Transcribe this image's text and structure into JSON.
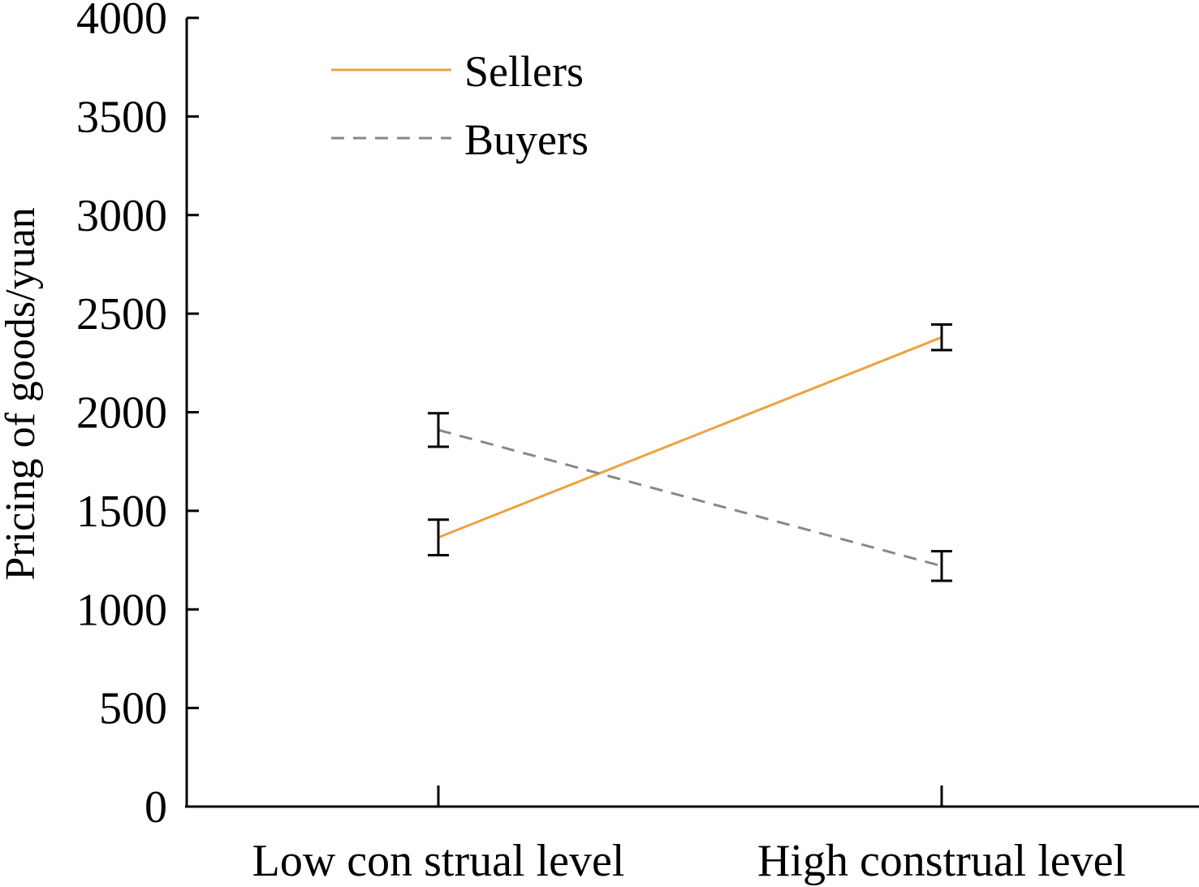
{
  "chart_data": {
    "type": "line",
    "categories": [
      "Low con strual level",
      "High construal level"
    ],
    "ylabel": "Pricing of goods/yuan",
    "xlabel": "",
    "ylim": [
      0,
      4000
    ],
    "yticks": [
      0,
      500,
      1000,
      1500,
      2000,
      2500,
      3000,
      3500,
      4000
    ],
    "legend_position": "top-left",
    "series": [
      {
        "name": "Sellers",
        "values": [
          1365,
          2380
        ],
        "error": [
          90,
          65
        ],
        "color": "#f0a040",
        "dash": "solid"
      },
      {
        "name": "Buyers",
        "values": [
          1910,
          1220
        ],
        "error": [
          85,
          75
        ],
        "color": "#888888",
        "dash": "dashed"
      }
    ]
  }
}
